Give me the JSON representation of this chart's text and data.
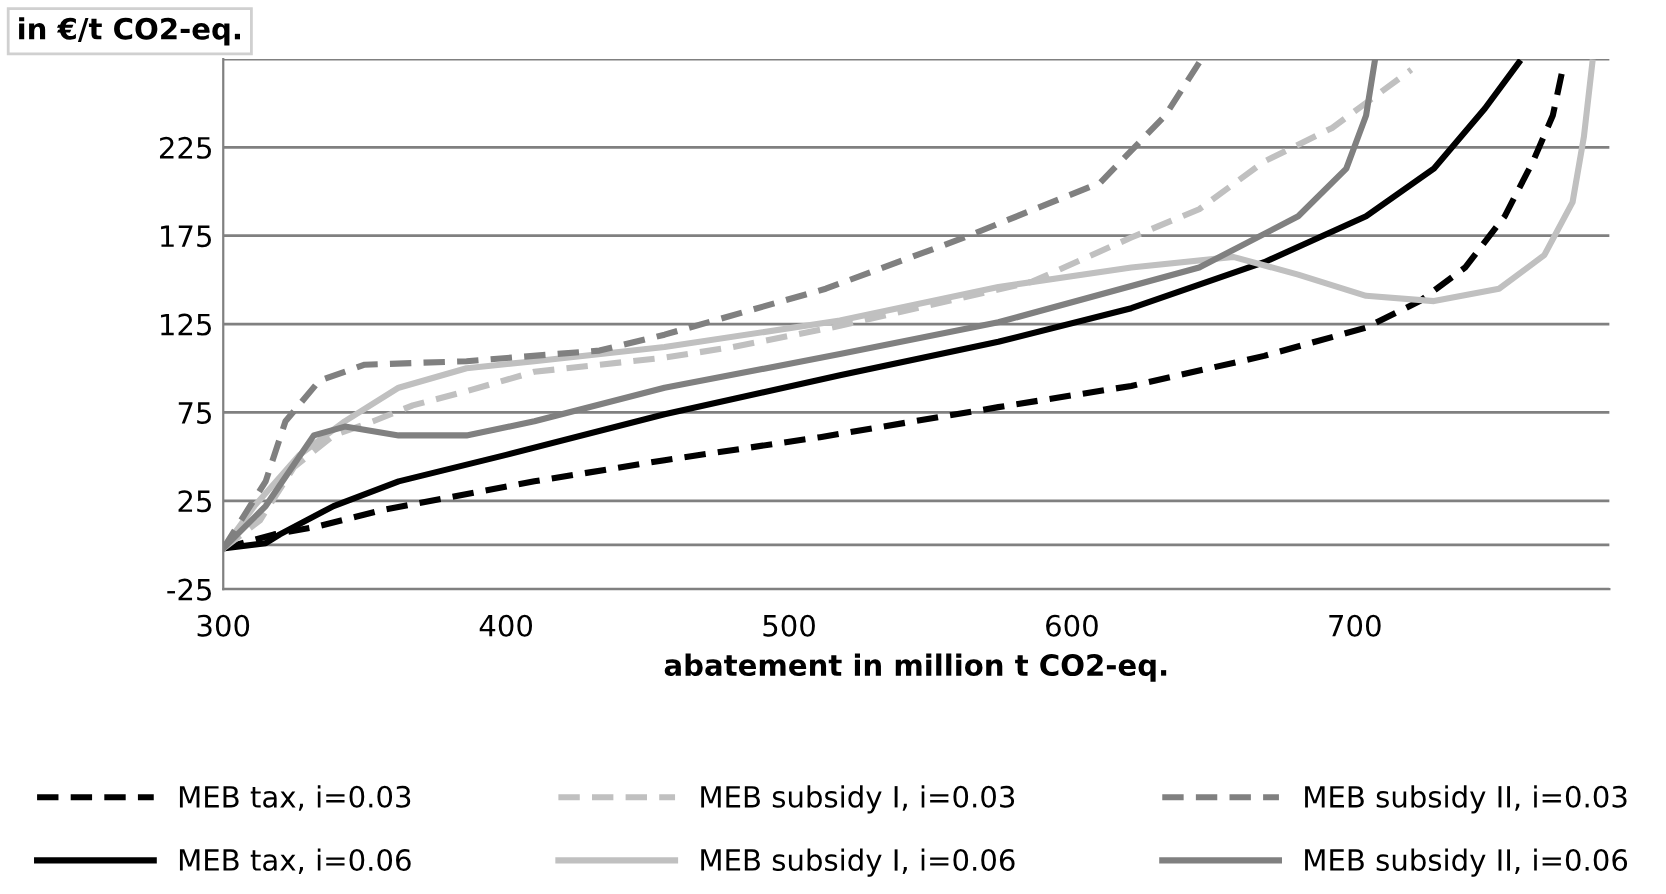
{
  "chart_data": {
    "type": "line",
    "ylabel": "in €/t CO2-eq.",
    "xlabel": "abatement in million t CO2-eq.",
    "xlim": [
      300,
      790
    ],
    "xticks": [
      300,
      400,
      500,
      600,
      700
    ],
    "ylim": [
      -25,
      275
    ],
    "yticks": [
      -25,
      25,
      75,
      125,
      175,
      225,
      {
        "value": 275,
        "label": null
      }
    ],
    "grid": "y",
    "legend": "bottom",
    "ref_lines": [
      {
        "axis": "y",
        "value": 0,
        "color": "#808080"
      }
    ],
    "series": [
      {
        "name": "MEB tax, i=0.03",
        "color": "#000000",
        "line_style": "dashed",
        "x": [
          300,
          318,
          332,
          357,
          410,
          456,
          511,
          574,
          621,
          668,
          704,
          723,
          739,
          753,
          763,
          770,
          774
        ],
        "values": [
          -2,
          6,
          10,
          20,
          36,
          48,
          61,
          78,
          90,
          107,
          123,
          138,
          157,
          186,
          217,
          243,
          273
        ]
      },
      {
        "name": "MEB tax, i=0.06",
        "color": "#000000",
        "line_style": "solid",
        "x": [
          300,
          315,
          320,
          339,
          362,
          400,
          456,
          518,
          574,
          621,
          668,
          704,
          728,
          746,
          758
        ],
        "values": [
          -2,
          1,
          6,
          22,
          36,
          51,
          74,
          96,
          115,
          134,
          160,
          186,
          213,
          247,
          273
        ]
      },
      {
        "name": "MEB subsidy I, i=0.03",
        "color": "#c0c0c0",
        "line_style": "dashed",
        "x": [
          300,
          313,
          325,
          339,
          353,
          367,
          386,
          410,
          456,
          480,
          518,
          586,
          621,
          645,
          668,
          692,
          720
        ],
        "values": [
          -2,
          14,
          44,
          62,
          70,
          79,
          87,
          98,
          106,
          112,
          124,
          149,
          174,
          190,
          217,
          236,
          269
        ]
      },
      {
        "name": "MEB subsidy I, i=0.06",
        "color": "#c0c0c0",
        "line_style": "solid",
        "x": [
          300,
          311,
          327,
          343,
          362,
          386,
          410,
          456,
          518,
          574,
          621,
          657,
          680,
          704,
          728,
          751,
          767,
          777,
          781,
          784
        ],
        "values": [
          -2,
          22,
          51,
          70,
          89,
          100,
          104,
          112,
          127,
          146,
          157,
          163,
          153,
          141,
          138,
          145,
          164,
          194,
          231,
          273
        ]
      },
      {
        "name": "MEB subsidy II, i=0.03",
        "color": "#808080",
        "line_style": "dashed",
        "x": [
          300,
          315,
          322,
          334,
          350,
          386,
          433,
          456,
          513,
          562,
          610,
          633,
          645
        ],
        "values": [
          -2,
          36,
          70,
          93,
          102,
          104,
          110,
          119,
          145,
          174,
          205,
          243,
          273
        ]
      },
      {
        "name": "MEB subsidy II, i=0.06",
        "color": "#808080",
        "line_style": "solid",
        "x": [
          300,
          315,
          332,
          343,
          362,
          386,
          410,
          456,
          518,
          574,
          645,
          680,
          697,
          704,
          707
        ],
        "values": [
          -2,
          22,
          62,
          67,
          62,
          62,
          70,
          89,
          108,
          126,
          157,
          186,
          213,
          243,
          273
        ]
      }
    ]
  }
}
